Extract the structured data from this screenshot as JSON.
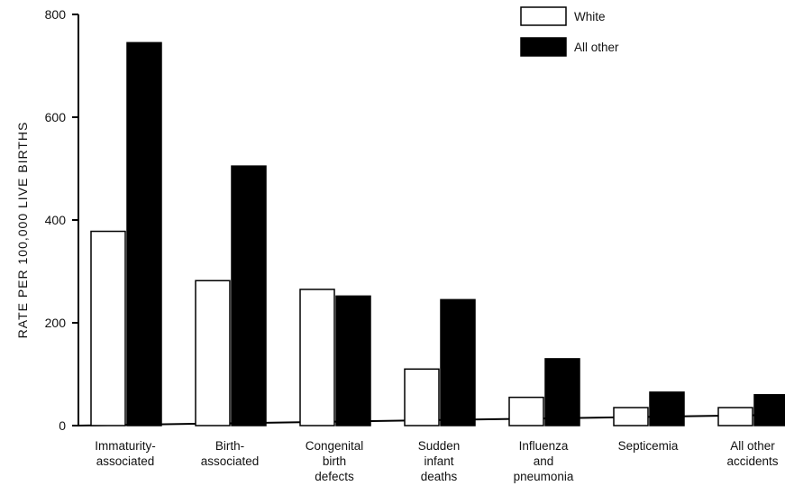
{
  "chart_data": {
    "type": "bar",
    "title": "",
    "xlabel": "",
    "ylabel": "RATE PER 100,000 LIVE BIRTHS",
    "ylim": [
      0,
      800
    ],
    "yticks": [
      "0",
      "200",
      "400",
      "600",
      "800"
    ],
    "categories": [
      [
        "Immaturity-",
        "associated"
      ],
      [
        "Birth-",
        "associated"
      ],
      [
        "Congenital",
        "birth",
        "defects"
      ],
      [
        "Sudden",
        "infant",
        "deaths"
      ],
      [
        "Influenza",
        "and",
        "pneumonia"
      ],
      [
        "Septicemia"
      ],
      [
        "All other",
        "accidents"
      ]
    ],
    "series": [
      {
        "name": "White",
        "values": [
          378,
          282,
          265,
          110,
          55,
          35,
          35
        ],
        "color": "#ffffff"
      },
      {
        "name": "All other",
        "values": [
          745,
          505,
          252,
          245,
          130,
          65,
          60
        ],
        "color": "#000000"
      }
    ],
    "legend_position": "top-right",
    "grid": false
  }
}
